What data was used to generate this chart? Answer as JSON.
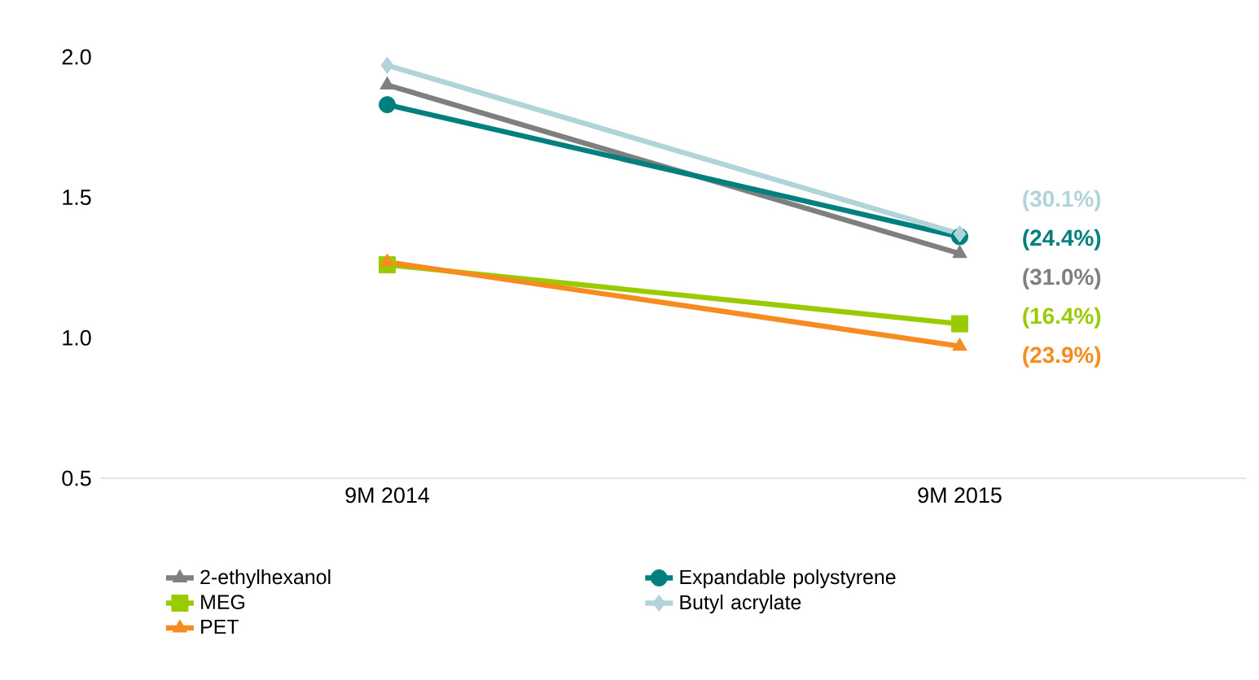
{
  "chart_data": {
    "type": "line",
    "categories": [
      "9M 2014",
      "9M 2015"
    ],
    "series": [
      {
        "name": "2-ethylhexanol",
        "color": "#7f7f7f",
        "marker": "triangle",
        "values": [
          1.9,
          1.3
        ]
      },
      {
        "name": "Expandable polystyrene",
        "color": "#007f7f",
        "marker": "circle",
        "values": [
          1.83,
          1.36
        ]
      },
      {
        "name": "MEG",
        "color": "#99cc00",
        "marker": "square",
        "values": [
          1.26,
          1.05
        ]
      },
      {
        "name": "Butyl acrylate",
        "color": "#b0d4da",
        "marker": "diamond",
        "values": [
          1.97,
          1.37
        ]
      },
      {
        "name": "PET",
        "color": "#f68b1f",
        "marker": "triangle",
        "values": [
          1.27,
          0.97
        ]
      }
    ],
    "annotations": [
      {
        "text": "(30.1%)",
        "x": "9M 2015",
        "y": 1.37
      },
      {
        "text": "(24.4%)",
        "x": "9M 2015",
        "y": 1.36
      },
      {
        "text": "(31.0%)",
        "x": "9M 2015",
        "y": 1.3
      },
      {
        "text": "(16.4%)",
        "x": "9M 2015",
        "y": 1.05
      },
      {
        "text": "(23.9%)",
        "x": "9M 2015",
        "y": 0.97
      }
    ],
    "ylim": [
      0.5,
      2.0
    ],
    "yticks": [
      {
        "value": 0.5,
        "label": "0.5"
      },
      {
        "value": 1.0,
        "label": "1.0"
      },
      {
        "value": 1.5,
        "label": "1.5"
      },
      {
        "value": 2.0,
        "label": "2.0"
      }
    ],
    "legend": "bottom"
  }
}
